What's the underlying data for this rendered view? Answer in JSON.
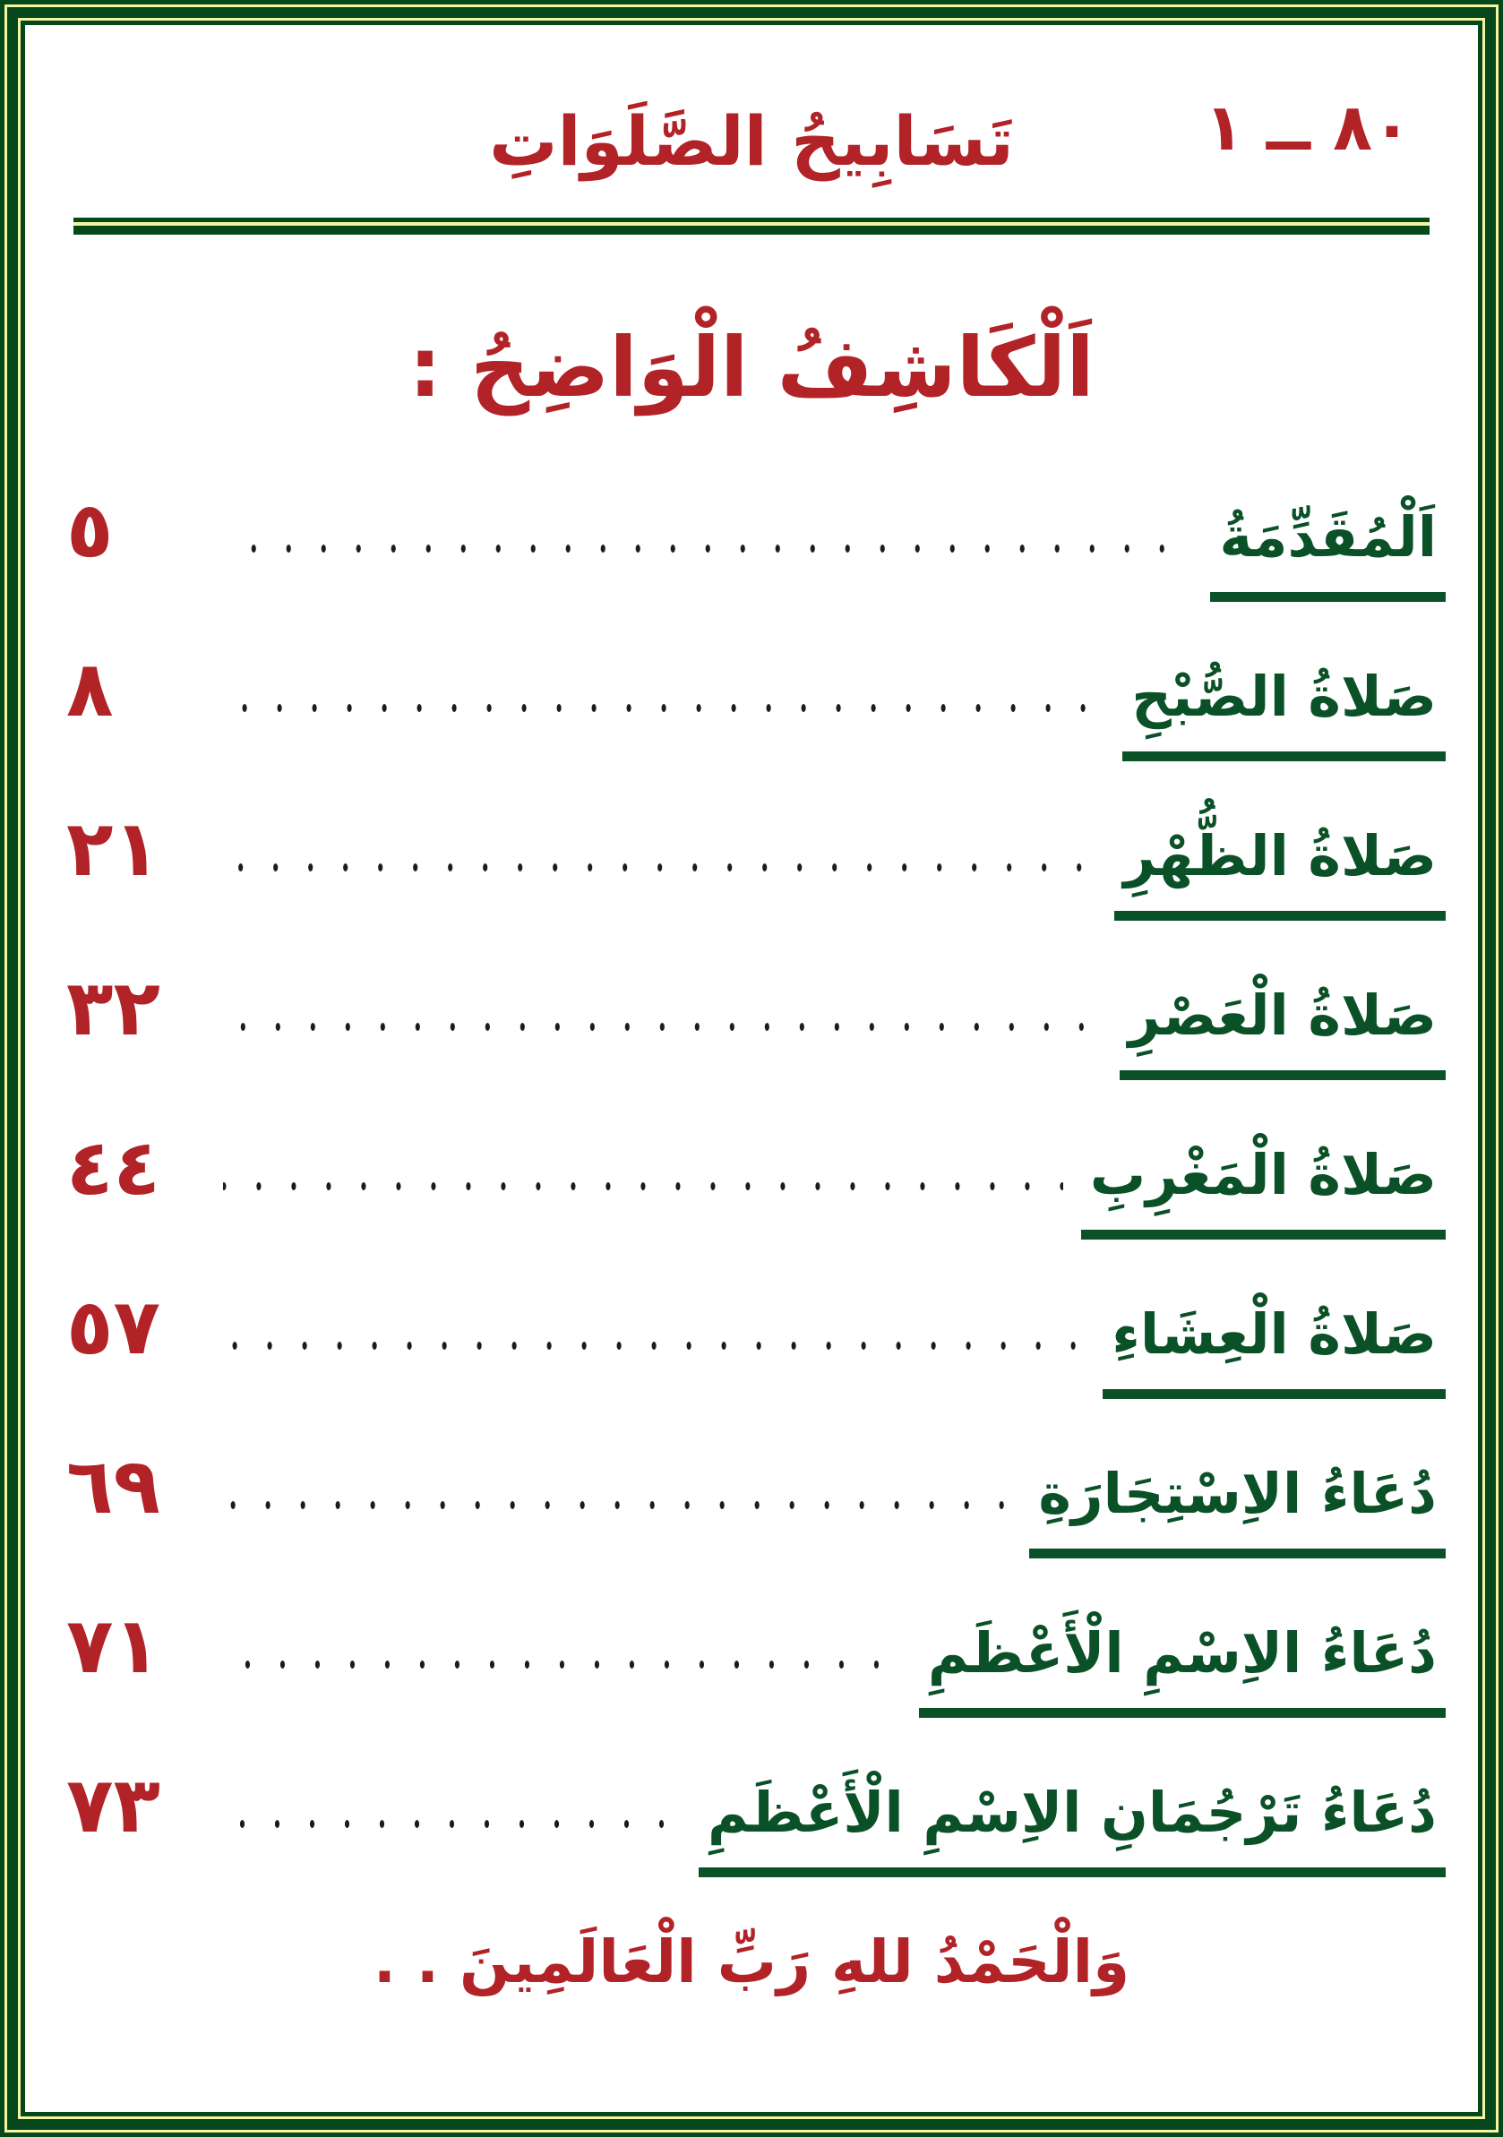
{
  "header": {
    "page_range": "٨٠ ــ ١",
    "book_title": "تَسَابِيحُ الصَّلَوَاتِ"
  },
  "section_title": "اَلْكَاشِفُ الْوَاضِحُ :",
  "toc": [
    {
      "title": "اَلْمُقَدِّمَةُ",
      "page": "٥"
    },
    {
      "title": "صَلاةُ الصُّبْحِ",
      "page": "٨"
    },
    {
      "title": "صَلاةُ الظُّهْرِ",
      "page": "٢١"
    },
    {
      "title": "صَلاةُ الْعَصْرِ",
      "page": "٣٢"
    },
    {
      "title": "صَلاةُ الْمَغْرِبِ",
      "page": "٤٤"
    },
    {
      "title": "صَلاةُ الْعِشَاءِ",
      "page": "٥٧"
    },
    {
      "title": "دُعَاءُ الاِسْتِجَارَةِ",
      "page": "٦٩"
    },
    {
      "title": "دُعَاءُ الاِسْمِ الْأَعْظَمِ",
      "page": "٧١"
    },
    {
      "title": "دُعَاءُ تَرْجُمَانِ الاِسْمِ الْأَعْظَمِ",
      "page": "٧٣"
    }
  ],
  "closing_text": "وَالْحَمْدُ للهِ رَبِّ الْعَالَمِينَ . .",
  "colors": {
    "frame_green": "#05481C",
    "frame_cream": "#F7F3A0",
    "text_green": "#0B5128",
    "accent_red": "#B22328",
    "leader_dots": "#1B1B1B"
  }
}
